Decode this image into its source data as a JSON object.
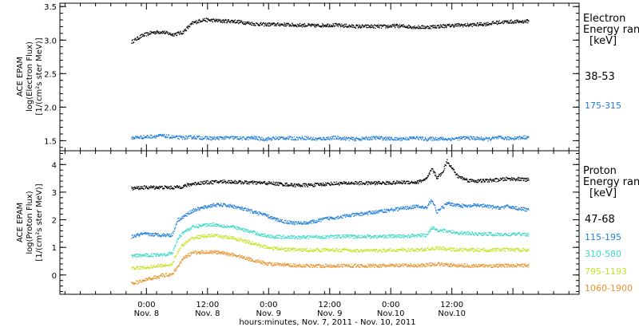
{
  "chart_data": [
    {
      "type": "scatter",
      "panel": "electron",
      "ylabel_lines": [
        "ACE EPAM",
        "log(Electron Flux)",
        "[1/(cm²s ster MeV)]"
      ],
      "ylim": [
        1.35,
        3.55
      ],
      "yticks": [
        1.5,
        2.0,
        2.5,
        3.0,
        3.5
      ],
      "ytick_labels": [
        "1.5",
        "2.0",
        "2.5",
        "3.0",
        "3.5"
      ],
      "legend_title": [
        "Electron",
        "Energy ran",
        "[keV]"
      ],
      "series": [
        {
          "name": "38-53",
          "color": "#000000",
          "x": [
            0,
            2,
            4,
            6,
            8,
            10,
            12,
            14,
            16,
            18,
            20,
            22,
            24,
            26,
            28,
            30,
            32,
            34,
            36,
            38,
            40,
            42,
            44,
            46,
            48,
            50,
            52,
            54,
            56,
            58,
            60,
            62,
            64,
            66,
            68,
            70,
            72,
            74,
            76,
            78
          ],
          "y": [
            2.98,
            3.07,
            3.12,
            3.13,
            3.09,
            3.12,
            3.26,
            3.31,
            3.3,
            3.29,
            3.29,
            3.27,
            3.25,
            3.24,
            3.24,
            3.24,
            3.23,
            3.23,
            3.22,
            3.23,
            3.23,
            3.22,
            3.21,
            3.21,
            3.21,
            3.21,
            3.22,
            3.21,
            3.2,
            3.2,
            3.21,
            3.22,
            3.23,
            3.23,
            3.24,
            3.25,
            3.27,
            3.28,
            3.28,
            3.29
          ]
        },
        {
          "name": "175-315",
          "color": "#1e7ed8",
          "x": [
            0,
            2,
            4,
            6,
            8,
            10,
            12,
            14,
            16,
            18,
            20,
            22,
            24,
            26,
            28,
            30,
            32,
            34,
            36,
            38,
            40,
            42,
            44,
            46,
            48,
            50,
            52,
            54,
            56,
            58,
            60,
            62,
            64,
            66,
            68,
            70,
            72,
            74,
            76,
            78
          ],
          "y": [
            1.55,
            1.56,
            1.57,
            1.58,
            1.56,
            1.55,
            1.56,
            1.55,
            1.54,
            1.55,
            1.55,
            1.54,
            1.55,
            1.53,
            1.54,
            1.55,
            1.54,
            1.55,
            1.53,
            1.54,
            1.55,
            1.54,
            1.53,
            1.54,
            1.55,
            1.54,
            1.53,
            1.54,
            1.55,
            1.53,
            1.54,
            1.53,
            1.54,
            1.55,
            1.54,
            1.53,
            1.55,
            1.54,
            1.55,
            1.56
          ]
        }
      ]
    },
    {
      "type": "scatter",
      "panel": "proton",
      "ylabel_lines": [
        "ACE EPAM",
        "log(Proton Flux)",
        "[1/(cm²s ster MeV)]"
      ],
      "ylim": [
        -0.7,
        4.5
      ],
      "yticks": [
        0,
        1,
        2,
        3,
        4
      ],
      "ytick_labels": [
        "0",
        "1",
        "2",
        "3",
        "4"
      ],
      "legend_title": [
        "Proton",
        "Energy ran",
        "[keV]"
      ],
      "series": [
        {
          "name": "47-68",
          "color": "#000000",
          "x": [
            0,
            2,
            4,
            6,
            8,
            10,
            12,
            14,
            16,
            18,
            20,
            22,
            24,
            26,
            28,
            30,
            32,
            34,
            36,
            38,
            40,
            42,
            44,
            46,
            48,
            50,
            52,
            54,
            56,
            58,
            59,
            60,
            61,
            62,
            64,
            66,
            68,
            70,
            72,
            74,
            76,
            78
          ],
          "y": [
            3.15,
            3.18,
            3.19,
            3.19,
            3.18,
            3.22,
            3.32,
            3.36,
            3.38,
            3.4,
            3.39,
            3.37,
            3.36,
            3.35,
            3.33,
            3.3,
            3.27,
            3.27,
            3.28,
            3.31,
            3.33,
            3.34,
            3.35,
            3.34,
            3.35,
            3.35,
            3.36,
            3.38,
            3.37,
            3.5,
            3.85,
            3.55,
            3.7,
            4.15,
            3.6,
            3.45,
            3.42,
            3.44,
            3.46,
            3.5,
            3.49,
            3.46
          ]
        },
        {
          "name": "115-195",
          "color": "#1e7ed8",
          "x": [
            0,
            2,
            4,
            6,
            8,
            9,
            10,
            12,
            14,
            16,
            18,
            20,
            22,
            24,
            26,
            28,
            30,
            32,
            34,
            36,
            38,
            40,
            42,
            44,
            46,
            48,
            50,
            52,
            54,
            56,
            58,
            59,
            60,
            62,
            64,
            66,
            68,
            70,
            72,
            74,
            76,
            78
          ],
          "y": [
            1.4,
            1.5,
            1.48,
            1.47,
            1.46,
            2.0,
            2.1,
            2.35,
            2.45,
            2.55,
            2.55,
            2.5,
            2.4,
            2.3,
            2.2,
            2.05,
            1.95,
            1.9,
            1.9,
            1.95,
            2.05,
            2.1,
            2.15,
            2.2,
            2.25,
            2.3,
            2.35,
            2.4,
            2.45,
            2.5,
            2.45,
            2.75,
            2.3,
            2.6,
            2.55,
            2.5,
            2.55,
            2.5,
            2.45,
            2.5,
            2.42,
            2.38
          ]
        },
        {
          "name": "310-580",
          "color": "#3ed8c8",
          "x": [
            0,
            2,
            4,
            6,
            8,
            9,
            10,
            12,
            14,
            16,
            18,
            20,
            22,
            24,
            26,
            28,
            30,
            32,
            34,
            36,
            38,
            40,
            42,
            44,
            46,
            48,
            50,
            52,
            54,
            56,
            58,
            59,
            60,
            62,
            64,
            66,
            68,
            70,
            72,
            74,
            76,
            78
          ],
          "y": [
            0.7,
            0.72,
            0.74,
            0.76,
            0.8,
            1.3,
            1.55,
            1.75,
            1.82,
            1.85,
            1.8,
            1.75,
            1.65,
            1.55,
            1.45,
            1.4,
            1.4,
            1.38,
            1.38,
            1.4,
            1.4,
            1.4,
            1.42,
            1.4,
            1.42,
            1.4,
            1.42,
            1.42,
            1.42,
            1.45,
            1.45,
            1.75,
            1.65,
            1.6,
            1.55,
            1.52,
            1.5,
            1.5,
            1.48,
            1.48,
            1.5,
            1.48
          ]
        },
        {
          "name": "795-1193",
          "color": "#c8e22a",
          "x": [
            0,
            2,
            4,
            6,
            8,
            9,
            10,
            12,
            14,
            16,
            18,
            20,
            22,
            24,
            26,
            28,
            30,
            32,
            34,
            36,
            38,
            40,
            42,
            44,
            46,
            48,
            50,
            52,
            54,
            56,
            58,
            60,
            62,
            64,
            66,
            68,
            70,
            72,
            74,
            76,
            78
          ],
          "y": [
            0.25,
            0.28,
            0.32,
            0.36,
            0.4,
            0.85,
            1.1,
            1.35,
            1.42,
            1.45,
            1.4,
            1.35,
            1.25,
            1.15,
            1.05,
            0.98,
            0.95,
            0.93,
            0.92,
            0.92,
            0.92,
            0.92,
            0.92,
            0.9,
            0.9,
            0.9,
            0.9,
            0.92,
            0.92,
            0.92,
            0.95,
            1.0,
            0.95,
            0.93,
            0.93,
            0.92,
            0.92,
            0.93,
            0.93,
            0.93,
            0.93
          ]
        },
        {
          "name": "1060-1900",
          "color": "#e8922a",
          "x": [
            0,
            2,
            4,
            6,
            8,
            9,
            10,
            12,
            14,
            16,
            18,
            20,
            22,
            24,
            26,
            28,
            30,
            32,
            34,
            36,
            38,
            40,
            42,
            44,
            46,
            48,
            50,
            52,
            54,
            56,
            58,
            60,
            62,
            64,
            66,
            68,
            70,
            72,
            74,
            76,
            78
          ],
          "y": [
            -0.3,
            -0.2,
            -0.1,
            0.0,
            0.05,
            0.3,
            0.6,
            0.82,
            0.85,
            0.85,
            0.8,
            0.75,
            0.65,
            0.55,
            0.45,
            0.4,
            0.38,
            0.36,
            0.35,
            0.35,
            0.35,
            0.35,
            0.36,
            0.35,
            0.35,
            0.35,
            0.35,
            0.36,
            0.36,
            0.36,
            0.38,
            0.42,
            0.38,
            0.36,
            0.35,
            0.35,
            0.35,
            0.35,
            0.36,
            0.36,
            0.36
          ]
        }
      ]
    }
  ],
  "x_axis": {
    "xlim": [
      -14,
      88
    ],
    "major_ticks": [
      3,
      15,
      27,
      39,
      51,
      63,
      75
    ],
    "tick_labels_top": [
      "0:00",
      "12:00",
      "0:00",
      "12:00",
      "0:00",
      "12:00"
    ],
    "tick_labels_bottom": [
      "Nov. 8",
      "Nov. 8",
      "Nov. 9",
      "Nov. 9",
      "Nov.10",
      "Nov.10"
    ],
    "label_ticks": [
      3,
      15,
      27,
      39,
      51,
      63
    ],
    "xlabel": "hours:minutes, Nov. 7, 2011 - Nov. 10, 2011"
  }
}
